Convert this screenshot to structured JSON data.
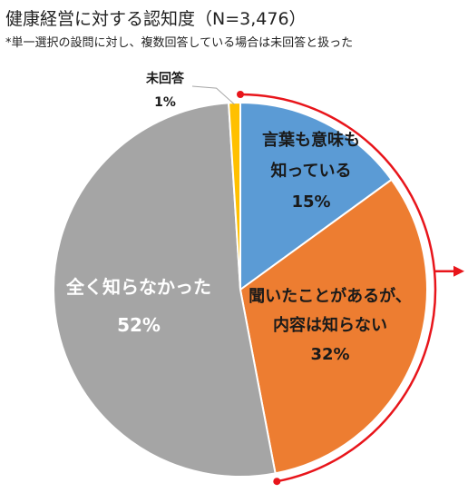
{
  "title": "健康経営に対する認知度（N=3,476）",
  "subtitle": "*単一選択の設問に対し、複数回答している場合は未回答と扱った",
  "chart_data": {
    "type": "pie",
    "start": "12 o'clock",
    "direction": "clockwise",
    "slices": [
      {
        "name": "言葉も意味も知っている",
        "label_lines": [
          "言葉も意味も",
          "知っている"
        ],
        "value": 15,
        "label": "15%",
        "color": "#5B9BD5"
      },
      {
        "name": "聞いたことがあるが、内容は知らない",
        "label_lines": [
          "聞いたことがあるが、",
          "内容は知らない"
        ],
        "value": 32,
        "label": "32%",
        "color": "#ED7D31"
      },
      {
        "name": "全く知らなかった",
        "label_lines": [
          "全く知らなかった"
        ],
        "value": 52,
        "label": "52%",
        "color": "#A5A5A5"
      },
      {
        "name": "未回答",
        "label_lines": [
          "未回答"
        ],
        "value": 1,
        "label": "1%",
        "color": "#FFC000"
      }
    ],
    "highlight": {
      "slices": [
        "言葉も意味も知っている",
        "聞いたことがあるが、内容は知らない"
      ],
      "color": "#E8151B"
    }
  }
}
